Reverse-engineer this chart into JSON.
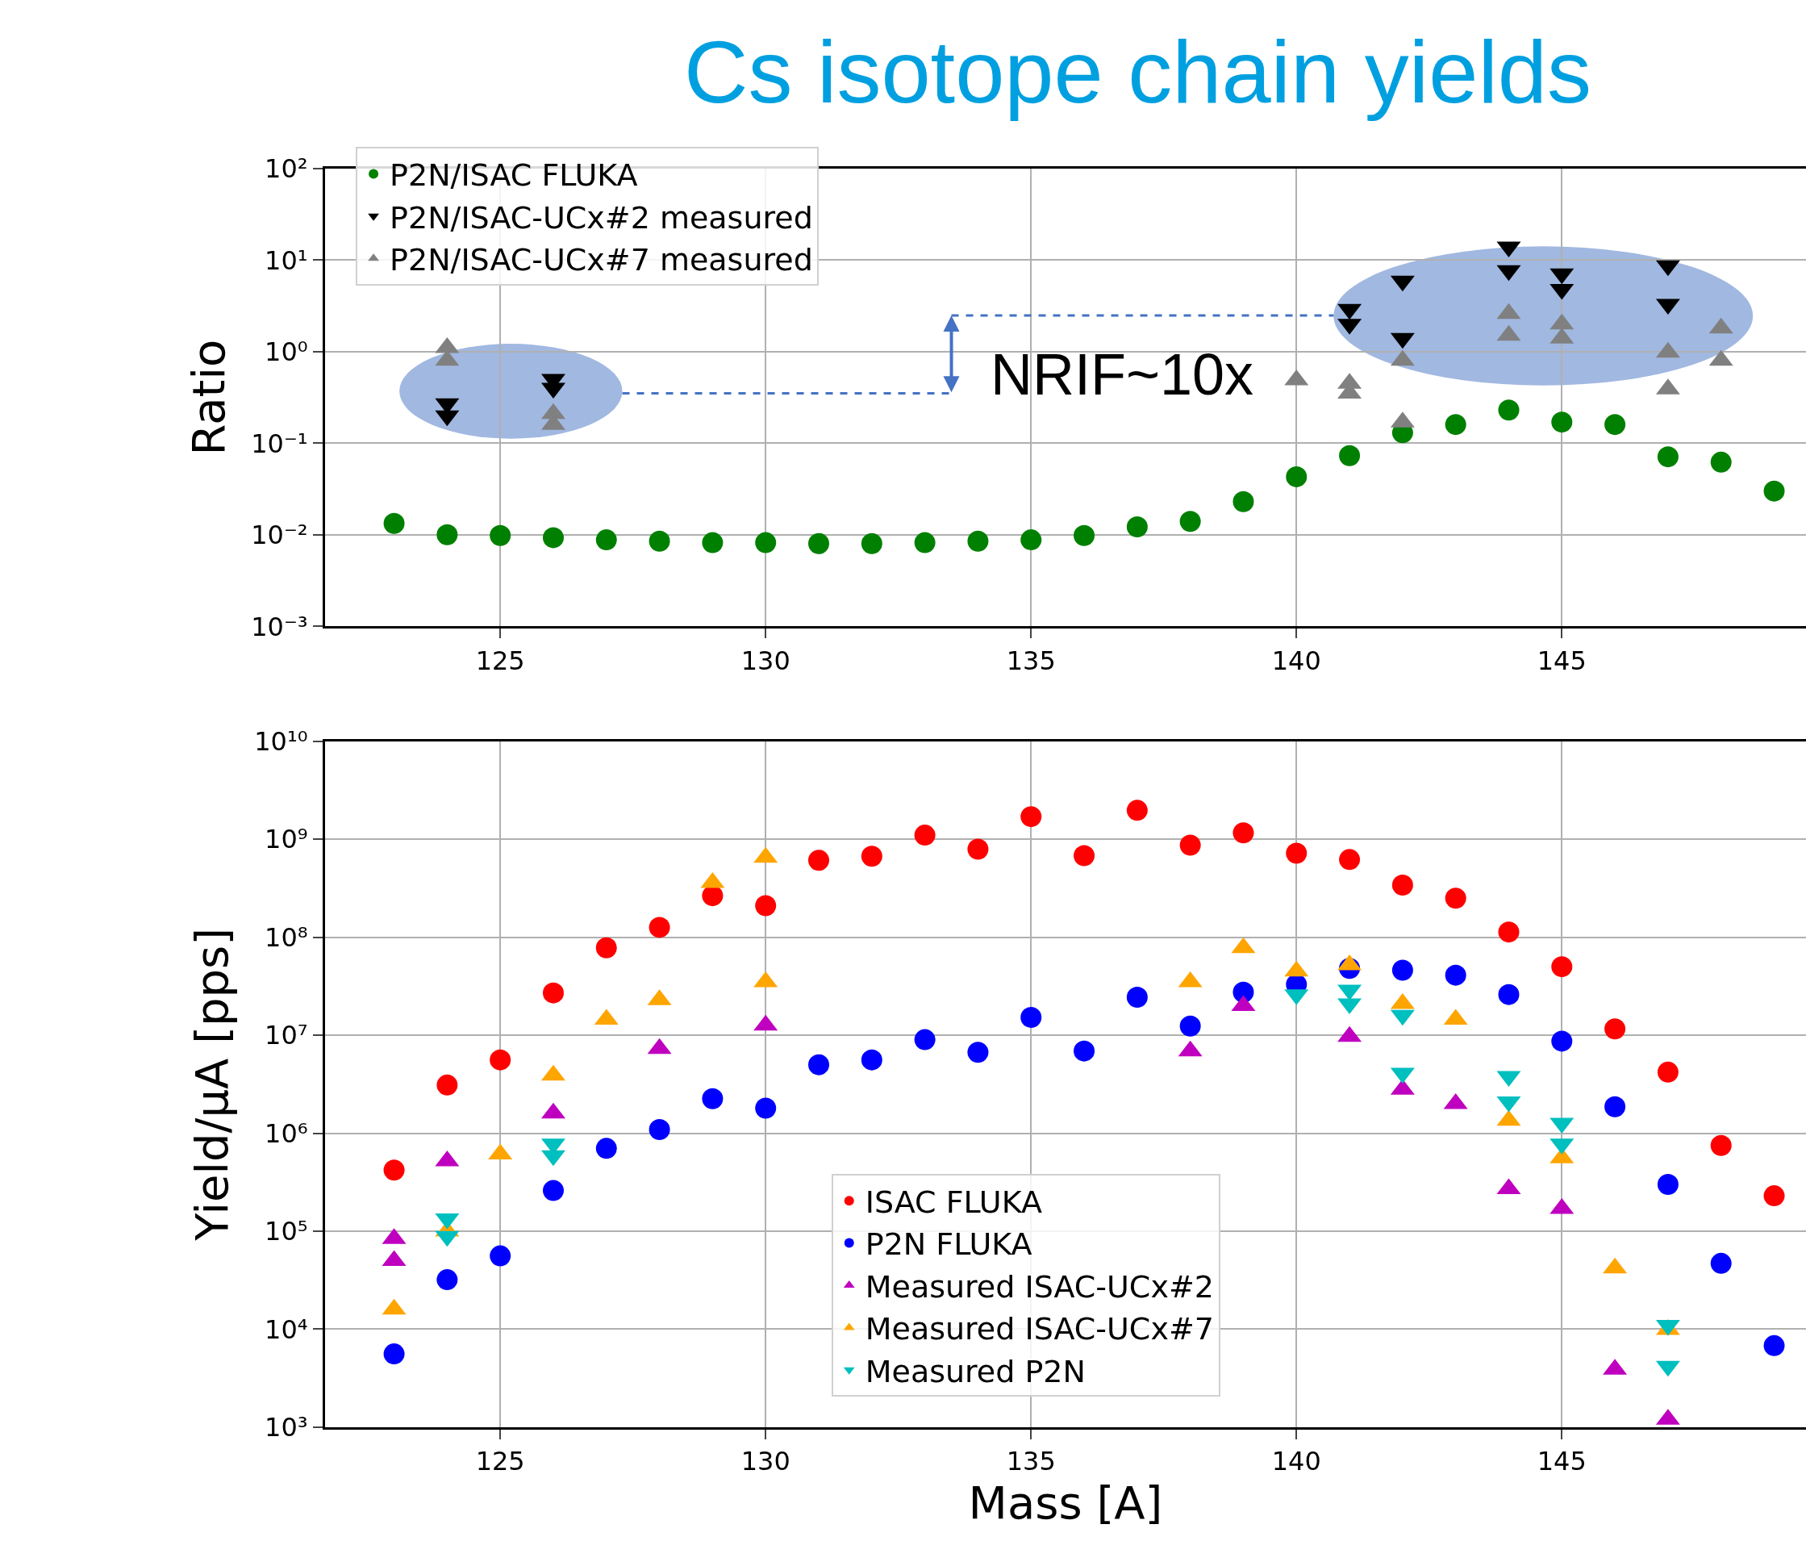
{
  "chart_data": [
    {
      "type": "scatter",
      "title": "Cs isotope chain yields",
      "ylabel": "Ratio",
      "log": "y",
      "grid": true,
      "legend": "top left",
      "xlim": [
        121.7,
        149.6
      ],
      "xticks": [
        125,
        130,
        135,
        140,
        145
      ],
      "ylim": [
        0.001,
        100
      ],
      "yticks": [
        {
          "value": 0.001,
          "label": "10⁻³"
        },
        {
          "value": 0.01,
          "label": "10⁻²"
        },
        {
          "value": 0.1,
          "label": "10⁻¹"
        },
        {
          "value": 1,
          "label": "10⁰"
        },
        {
          "value": 10,
          "label": "10¹"
        },
        {
          "value": 100,
          "label": "10²"
        }
      ],
      "annotations": [
        "NRIF~10x"
      ],
      "series": [
        {
          "name": "P2N/ISAC FLUKA",
          "color": "#008000",
          "marker": "circle",
          "x": [
            123,
            124,
            125,
            126,
            127,
            128,
            129,
            130,
            131,
            132,
            133,
            134,
            135,
            136,
            137,
            138,
            139,
            140,
            141,
            142,
            143,
            144,
            145,
            146,
            147,
            148,
            149
          ],
          "values": [
            0.0133,
            0.01,
            0.0098,
            0.0093,
            0.0088,
            0.0085,
            0.0082,
            0.0082,
            0.008,
            0.008,
            0.0082,
            0.0085,
            0.0088,
            0.0098,
            0.0122,
            0.014,
            0.023,
            0.043,
            0.073,
            0.13,
            0.16,
            0.23,
            0.17,
            0.16,
            0.071,
            0.062,
            0.03
          ]
        },
        {
          "name": "P2N/ISAC-UCx#2 measured",
          "color": "#000000",
          "marker": "triangle-down",
          "x": [
            124,
            124,
            126,
            126,
            141,
            141,
            142,
            142,
            144,
            144,
            145,
            145,
            147,
            147
          ],
          "values": [
            0.27,
            0.2,
            0.5,
            0.4,
            2.9,
            2.0,
            5.9,
            1.4,
            13.9,
            7.7,
            7.1,
            4.8,
            8.7,
            3.3
          ]
        },
        {
          "name": "P2N/ISAC-UCx#7 measured",
          "color": "#808080",
          "marker": "triangle",
          "x": [
            124,
            124,
            126,
            126,
            140,
            141,
            141,
            142,
            142,
            144,
            144,
            145,
            145,
            147,
            147,
            148,
            148
          ],
          "values": [
            1.1,
            0.8,
            0.21,
            0.16,
            0.49,
            0.45,
            0.35,
            0.8,
            0.17,
            2.6,
            1.5,
            2.0,
            1.4,
            0.98,
            0.39,
            1.8,
            0.8
          ]
        }
      ]
    },
    {
      "type": "scatter",
      "xlabel": "Mass [A]",
      "ylabel": "Yield/μA [pps]",
      "log": "y",
      "grid": true,
      "legend": "bottom",
      "xlim": [
        121.7,
        149.6
      ],
      "xticks": [
        125,
        130,
        135,
        140,
        145
      ],
      "ylim": [
        1000,
        10000000000
      ],
      "yticks": [
        {
          "value": 1000,
          "label": "10³"
        },
        {
          "value": 10000,
          "label": "10⁴"
        },
        {
          "value": 100000,
          "label": "10⁵"
        },
        {
          "value": 1000000,
          "label": "10⁶"
        },
        {
          "value": 10000000,
          "label": "10⁷"
        },
        {
          "value": 100000000,
          "label": "10⁸"
        },
        {
          "value": 1000000000,
          "label": "10⁹"
        },
        {
          "value": 10000000000,
          "label": "10¹⁰"
        }
      ],
      "series": [
        {
          "name": "ISAC FLUKA",
          "color": "#ff0000",
          "marker": "circle",
          "x": [
            123,
            124,
            125,
            126,
            127,
            128,
            129,
            130,
            131,
            132,
            133,
            134,
            135,
            136,
            137,
            138,
            139,
            140,
            141,
            142,
            143,
            144,
            145,
            146,
            147,
            148,
            149
          ],
          "values": [
            420000,
            3100000,
            5600000,
            27000000,
            78000000,
            126000000,
            265000000,
            210000000,
            610000000,
            670000000,
            1100000000,
            790000000,
            1700000000,
            680000000,
            1970000000,
            870000000,
            1160000000,
            720000000,
            620000000,
            340000000,
            250000000,
            113000000,
            50000000,
            11600000,
            4200000,
            750000,
            230000
          ]
        },
        {
          "name": "P2N FLUKA",
          "color": "#0000ff",
          "marker": "circle",
          "x": [
            123,
            124,
            125,
            126,
            127,
            128,
            129,
            130,
            131,
            132,
            133,
            134,
            135,
            136,
            137,
            138,
            139,
            140,
            141,
            142,
            143,
            144,
            145,
            146,
            147,
            148,
            149
          ],
          "values": [
            5600,
            32000,
            56000,
            260000,
            700000,
            1090000,
            2250000,
            1800000,
            5000000,
            5600000,
            9000000,
            6700000,
            15200000,
            6900000,
            24400000,
            12400000,
            27500000,
            33000000,
            48000000,
            46000000,
            41000000,
            26000000,
            8700000,
            1860000,
            300000,
            47000,
            6800
          ]
        },
        {
          "name": "Measured ISAC-UCx#2",
          "color": "#bf00bf",
          "marker": "triangle",
          "x": [
            123,
            123,
            124,
            126,
            128,
            130,
            138,
            139,
            141,
            142,
            143,
            144,
            145,
            146,
            147
          ],
          "values": [
            84000,
            50000,
            520000,
            1600000,
            7300000,
            12600000,
            6900000,
            20000000,
            9700000,
            2800000,
            2000000,
            270000,
            170000,
            3900,
            1200
          ]
        },
        {
          "name": "Measured ISAC-UCx#7",
          "color": "#ffa500",
          "marker": "triangle",
          "x": [
            123,
            124,
            125,
            126,
            127,
            128,
            129,
            130,
            130,
            138,
            139,
            140,
            141,
            142,
            143,
            144,
            145,
            146,
            147
          ],
          "values": [
            16000,
            100000,
            610000,
            3900000,
            14500000,
            23000000,
            360000000,
            650000000,
            35000000,
            35000000,
            78000000,
            45000000,
            52000000,
            21000000,
            14500000,
            1350000,
            560000,
            42000,
            9900
          ]
        },
        {
          "name": "Measured P2N",
          "color": "#00bfbf",
          "marker": "triangle-down",
          "x": [
            124,
            124,
            126,
            126,
            140,
            141,
            141,
            142,
            142,
            144,
            144,
            145,
            145,
            147,
            147
          ],
          "values": [
            134000,
            89000,
            780000,
            590000,
            26000000,
            29000000,
            21000000,
            16000000,
            4100000,
            3800000,
            2100000,
            1270000,
            780000,
            11000,
            4200
          ]
        }
      ]
    }
  ]
}
